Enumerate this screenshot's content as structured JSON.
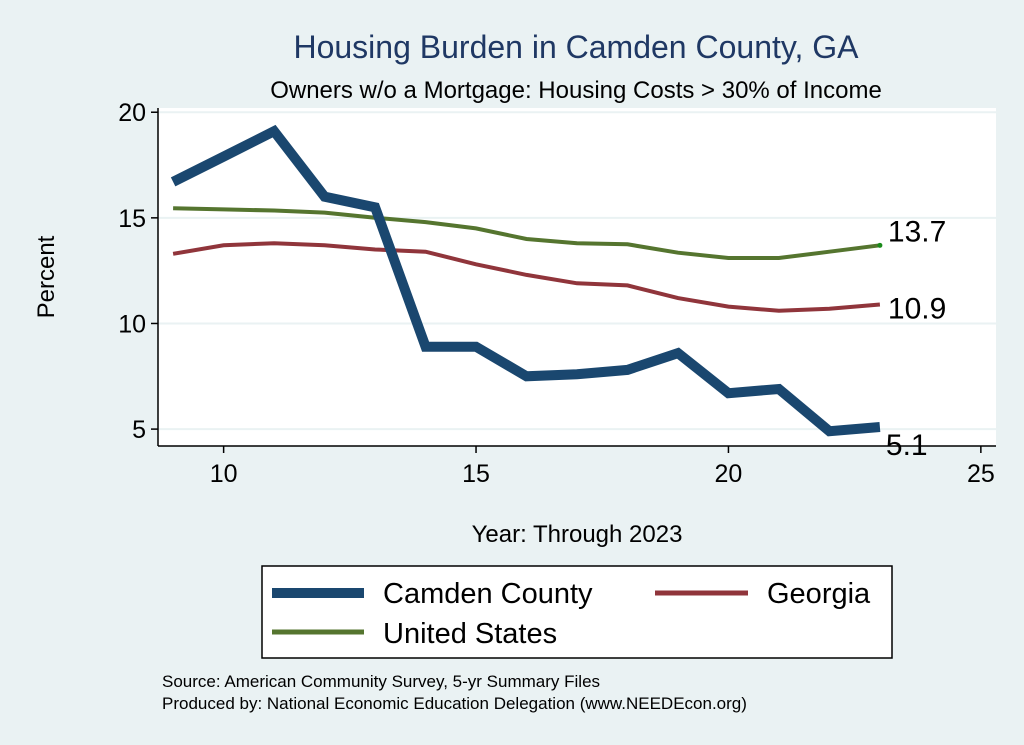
{
  "chart_data": {
    "type": "line",
    "title": "Housing Burden in Camden County, GA",
    "subtitle": "Owners w/o a Mortgage: Housing Costs > 30% of Income",
    "xlabel": "Year: Through 2023",
    "ylabel": "Percent",
    "xlim": [
      8.7,
      25.3
    ],
    "ylim": [
      4.2,
      20.2
    ],
    "xticks": [
      10,
      15,
      20,
      25
    ],
    "yticks": [
      5,
      10,
      15,
      20
    ],
    "grid": true,
    "legend_position": "bottom",
    "x": [
      9,
      10,
      11,
      12,
      13,
      14,
      15,
      16,
      17,
      18,
      19,
      20,
      21,
      22,
      23
    ],
    "series": [
      {
        "name": "Camden County",
        "color": "#1a476f",
        "values": [
          16.7,
          17.9,
          19.1,
          16.0,
          15.5,
          8.9,
          8.9,
          7.5,
          7.6,
          7.8,
          8.6,
          6.7,
          6.9,
          4.9,
          5.1
        ],
        "end_label": "5.1"
      },
      {
        "name": "Georgia",
        "color": "#90353b",
        "values": [
          13.3,
          13.7,
          13.8,
          13.7,
          13.5,
          13.4,
          12.8,
          12.3,
          11.9,
          11.8,
          11.2,
          10.8,
          10.6,
          10.7,
          10.9
        ],
        "end_label": "10.9"
      },
      {
        "name": "United States",
        "color": "#55752f",
        "values": [
          15.45,
          15.4,
          15.35,
          15.25,
          15.0,
          14.8,
          14.5,
          14.0,
          13.8,
          13.75,
          13.35,
          13.1,
          13.1,
          13.4,
          13.7
        ],
        "end_label": "13.7"
      }
    ]
  },
  "source": {
    "line1": "Source: American Community Survey, 5-yr Summary Files",
    "line2": "Produced by: National Economic Education Delegation (www.NEEDEcon.org)"
  }
}
